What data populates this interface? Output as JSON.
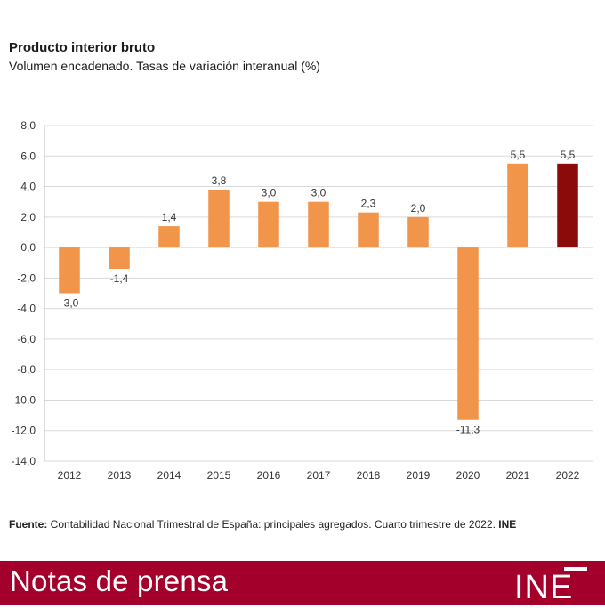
{
  "header": {
    "title": "Producto interior bruto",
    "subtitle": "Volumen encadenado. Tasas de variación interanual (%)"
  },
  "chart_data": {
    "type": "bar",
    "categories": [
      "2012",
      "2013",
      "2014",
      "2015",
      "2016",
      "2017",
      "2018",
      "2019",
      "2020",
      "2021",
      "2022"
    ],
    "values": [
      -3.0,
      -1.4,
      1.4,
      3.8,
      3.0,
      3.0,
      2.3,
      2.0,
      -11.3,
      5.5,
      5.5
    ],
    "data_labels": [
      "-3,0",
      "-1,4",
      "1,4",
      "3,8",
      "3,0",
      "3,0",
      "2,3",
      "2,0",
      "-11,3",
      "5,5",
      "5,5"
    ],
    "y_ticks": [
      "8,0",
      "6,0",
      "4,0",
      "2,0",
      "0,0",
      "-2,0",
      "-4,0",
      "-6,0",
      "-8,0",
      "-10,0",
      "-12,0",
      "-14,0"
    ],
    "ylim": [
      -14,
      8
    ],
    "grid": true,
    "colors": {
      "default": "#f0954a",
      "highlight": "#8b0a0a",
      "grid": "#d9d9d9"
    },
    "highlight_index": 10
  },
  "footer": {
    "source_label": "Fuente:",
    "source_text": " Contabilidad Nacional Trimestral de España: principales agregados. Cuarto trimestre de 2022. ",
    "source_org": "INE"
  },
  "banner": {
    "text": "Notas de prensa",
    "logo": "INE",
    "color": "#a3002b"
  }
}
